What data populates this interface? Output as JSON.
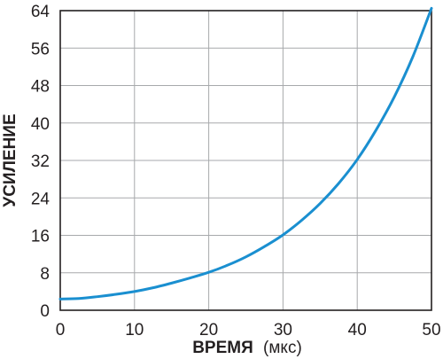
{
  "chart_data": {
    "type": "line",
    "xlabel_bold": "ВРЕМЯ",
    "xlabel_unit": "(мкс)",
    "ylabel": "УСИЛЕНИЕ",
    "xlim": [
      0,
      50
    ],
    "ylim": [
      0,
      64
    ],
    "x_ticks": [
      "0",
      "10",
      "20",
      "30",
      "40",
      "50"
    ],
    "y_ticks": [
      "0",
      "8",
      "16",
      "24",
      "32",
      "40",
      "48",
      "56",
      "64"
    ],
    "grid": true,
    "series": [
      {
        "color": "#1a8fd0",
        "x": [
          0,
          2.5,
          5,
          7.5,
          10,
          12.5,
          15,
          17.5,
          20,
          22.5,
          25,
          27.5,
          30,
          32.5,
          35,
          37.5,
          40,
          42.5,
          45,
          47.5,
          50
        ],
        "y": [
          2.4,
          2.5,
          2.9,
          3.4,
          4.0,
          4.8,
          5.8,
          6.9,
          8.1,
          9.6,
          11.4,
          13.6,
          16.1,
          19.2,
          22.8,
          27.1,
          32.2,
          38.4,
          45.6,
          54.2,
          64.5
        ]
      }
    ]
  }
}
